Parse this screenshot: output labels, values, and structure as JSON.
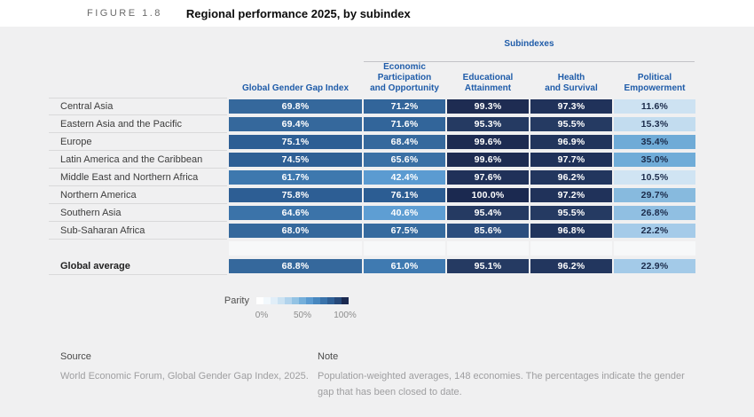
{
  "figure": {
    "label": "FIGURE 1.8",
    "title": "Regional performance 2025, by subindex"
  },
  "table": {
    "group_header": "Subindexes",
    "columns": [
      [
        "Global Gender Gap Index"
      ],
      [
        "Economic Participation",
        "and Opportunity"
      ],
      [
        "Educational",
        "Attainment"
      ],
      [
        "Health",
        "and Survival"
      ],
      [
        "Political",
        "Empowerment"
      ]
    ],
    "rows": [
      {
        "label": "Central Asia",
        "cells": [
          {
            "v": "69.8%",
            "bg": "#35689c",
            "fg": "#ffffff"
          },
          {
            "v": "71.2%",
            "bg": "#32659a",
            "fg": "#ffffff"
          },
          {
            "v": "99.3%",
            "bg": "#1e2c52",
            "fg": "#ffffff"
          },
          {
            "v": "97.3%",
            "bg": "#20325a",
            "fg": "#ffffff"
          },
          {
            "v": "11.6%",
            "bg": "#cde2f2",
            "fg": "#1b2b4a"
          }
        ]
      },
      {
        "label": "Eastern Asia and the Pacific",
        "cells": [
          {
            "v": "69.4%",
            "bg": "#35689c",
            "fg": "#ffffff"
          },
          {
            "v": "71.6%",
            "bg": "#32659a",
            "fg": "#ffffff"
          },
          {
            "v": "95.3%",
            "bg": "#253a62",
            "fg": "#ffffff"
          },
          {
            "v": "95.5%",
            "bg": "#253a62",
            "fg": "#ffffff"
          },
          {
            "v": "15.3%",
            "bg": "#c2dcef",
            "fg": "#1b2b4a"
          }
        ]
      },
      {
        "label": "Europe",
        "cells": [
          {
            "v": "75.1%",
            "bg": "#2d5e94",
            "fg": "#ffffff"
          },
          {
            "v": "68.4%",
            "bg": "#36699d",
            "fg": "#ffffff"
          },
          {
            "v": "99.6%",
            "bg": "#1d2b51",
            "fg": "#ffffff"
          },
          {
            "v": "96.9%",
            "bg": "#21345c",
            "fg": "#ffffff"
          },
          {
            "v": "35.4%",
            "bg": "#6fabd7",
            "fg": "#1b2b4a"
          }
        ]
      },
      {
        "label": "Latin America and the Caribbean",
        "cells": [
          {
            "v": "74.5%",
            "bg": "#2e5f95",
            "fg": "#ffffff"
          },
          {
            "v": "65.6%",
            "bg": "#3a70a5",
            "fg": "#ffffff"
          },
          {
            "v": "99.6%",
            "bg": "#1d2b51",
            "fg": "#ffffff"
          },
          {
            "v": "97.7%",
            "bg": "#1f315a",
            "fg": "#ffffff"
          },
          {
            "v": "35.0%",
            "bg": "#70acd8",
            "fg": "#1b2b4a"
          }
        ]
      },
      {
        "label": "Middle East and Northern Africa",
        "cells": [
          {
            "v": "61.7%",
            "bg": "#3e78ae",
            "fg": "#ffffff"
          },
          {
            "v": "42.4%",
            "bg": "#5b9bd1",
            "fg": "#ffffff"
          },
          {
            "v": "97.6%",
            "bg": "#203159",
            "fg": "#ffffff"
          },
          {
            "v": "96.2%",
            "bg": "#22365e",
            "fg": "#ffffff"
          },
          {
            "v": "10.5%",
            "bg": "#d0e4f3",
            "fg": "#1b2b4a"
          }
        ]
      },
      {
        "label": "Northern America",
        "cells": [
          {
            "v": "75.8%",
            "bg": "#2d5e94",
            "fg": "#ffffff"
          },
          {
            "v": "76.1%",
            "bg": "#2c5d93",
            "fg": "#ffffff"
          },
          {
            "v": "100.0%",
            "bg": "#1b2950",
            "fg": "#ffffff"
          },
          {
            "v": "97.2%",
            "bg": "#20325a",
            "fg": "#ffffff"
          },
          {
            "v": "29.7%",
            "bg": "#87bade",
            "fg": "#1b2b4a"
          }
        ]
      },
      {
        "label": "Southern Asia",
        "cells": [
          {
            "v": "64.6%",
            "bg": "#3b73a9",
            "fg": "#ffffff"
          },
          {
            "v": "40.6%",
            "bg": "#5e9ed3",
            "fg": "#ffffff"
          },
          {
            "v": "95.4%",
            "bg": "#253a62",
            "fg": "#ffffff"
          },
          {
            "v": "95.5%",
            "bg": "#253a62",
            "fg": "#ffffff"
          },
          {
            "v": "26.8%",
            "bg": "#90bfe2",
            "fg": "#1b2b4a"
          }
        ]
      },
      {
        "label": "Sub-Saharan Africa",
        "cells": [
          {
            "v": "68.0%",
            "bg": "#35689c",
            "fg": "#ffffff"
          },
          {
            "v": "67.5%",
            "bg": "#366b9f",
            "fg": "#ffffff"
          },
          {
            "v": "85.6%",
            "bg": "#2c4e7e",
            "fg": "#ffffff"
          },
          {
            "v": "96.8%",
            "bg": "#21355d",
            "fg": "#ffffff"
          },
          {
            "v": "22.2%",
            "bg": "#a5cbe9",
            "fg": "#1b2b4a"
          }
        ]
      }
    ],
    "summary_row": {
      "label": "Global average",
      "cells": [
        {
          "v": "68.8%",
          "bg": "#35689c",
          "fg": "#ffffff"
        },
        {
          "v": "61.0%",
          "bg": "#3f7ab1",
          "fg": "#ffffff"
        },
        {
          "v": "95.1%",
          "bg": "#253a62",
          "fg": "#ffffff"
        },
        {
          "v": "96.2%",
          "bg": "#22365e",
          "fg": "#ffffff"
        },
        {
          "v": "22.9%",
          "bg": "#a3cae8",
          "fg": "#1b2b4a"
        }
      ]
    }
  },
  "legend": {
    "label": "Parity",
    "ticks": [
      "0%",
      "50%",
      "100%"
    ],
    "colors": [
      "#ffffff",
      "#f2f8fc",
      "#e1eef8",
      "#cbe2f2",
      "#b1d3ec",
      "#93c3e4",
      "#74afdb",
      "#5b9bd1",
      "#4787bf",
      "#3a73ab",
      "#2f5f95",
      "#26497a",
      "#1b2950"
    ]
  },
  "source": {
    "heading": "Source",
    "body": "World Economic Forum, Global Gender Gap Index, 2025."
  },
  "note": {
    "heading": "Note",
    "body": "Population-weighted averages, 148 economies. The percentages indicate the gender gap that has been closed to date."
  },
  "chart_data": {
    "type": "heatmap",
    "title": "Regional performance 2025, by subindex",
    "columns": [
      "Global Gender Gap Index",
      "Economic Participation and Opportunity",
      "Educational Attainment",
      "Health and Survival",
      "Political Empowerment"
    ],
    "rows": [
      "Central Asia",
      "Eastern Asia and the Pacific",
      "Europe",
      "Latin America and the Caribbean",
      "Middle East and Northern Africa",
      "Northern America",
      "Southern Asia",
      "Sub-Saharan Africa",
      "Global average"
    ],
    "values": [
      [
        69.8,
        71.2,
        99.3,
        97.3,
        11.6
      ],
      [
        69.4,
        71.6,
        95.3,
        95.5,
        15.3
      ],
      [
        75.1,
        68.4,
        99.6,
        96.9,
        35.4
      ],
      [
        74.5,
        65.6,
        99.6,
        97.7,
        35.0
      ],
      [
        61.7,
        42.4,
        97.6,
        96.2,
        10.5
      ],
      [
        75.8,
        76.1,
        100.0,
        97.2,
        29.7
      ],
      [
        64.6,
        40.6,
        95.4,
        95.5,
        26.8
      ],
      [
        68.0,
        67.5,
        85.6,
        96.8,
        22.2
      ],
      [
        68.8,
        61.0,
        95.1,
        96.2,
        22.9
      ]
    ],
    "unit": "%",
    "colorscale": {
      "label": "Parity",
      "min": 0,
      "max": 100,
      "ticks": [
        "0%",
        "50%",
        "100%"
      ],
      "low_color": "#ffffff",
      "high_color": "#1b2950"
    }
  }
}
